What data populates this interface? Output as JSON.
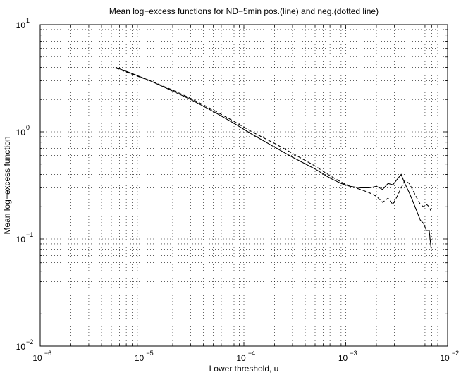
{
  "chart_data": {
    "type": "line",
    "title": "Mean log−excess functions for ND−5min pos.(line) and neg.(dotted line)",
    "xlabel": "Lower threshold, u",
    "ylabel": "Mean log−excess function",
    "x_scale": "log",
    "y_scale": "log",
    "xlim": [
      1e-06,
      0.01
    ],
    "ylim": [
      0.01,
      10
    ],
    "grid": true,
    "x_ticks": [
      {
        "value": 1e-06,
        "base": "10",
        "exp": "−6"
      },
      {
        "value": 1e-05,
        "base": "10",
        "exp": "−5"
      },
      {
        "value": 0.0001,
        "base": "10",
        "exp": "−4"
      },
      {
        "value": 0.001,
        "base": "10",
        "exp": "−3"
      },
      {
        "value": 0.01,
        "base": "10",
        "exp": "−2"
      }
    ],
    "y_ticks": [
      {
        "value": 0.01,
        "base": "10",
        "exp": "−2"
      },
      {
        "value": 0.1,
        "base": "10",
        "exp": "−1"
      },
      {
        "value": 1,
        "base": "10",
        "exp": "0"
      },
      {
        "value": 10,
        "base": "10",
        "exp": "1"
      }
    ],
    "series": [
      {
        "style": "solid",
        "x": [
          5.5e-06,
          8e-06,
          1.2e-05,
          2e-05,
          3e-05,
          5e-05,
          8e-05,
          0.00012,
          0.0002,
          0.0003,
          0.0005,
          0.0007,
          0.0009,
          0.0011,
          0.0014,
          0.0017,
          0.002,
          0.0023,
          0.0026,
          0.0029,
          0.0032,
          0.0035,
          0.0038,
          0.0042,
          0.0046,
          0.005,
          0.0054,
          0.0058,
          0.0062,
          0.0066,
          0.0069
        ],
        "y": [
          4.0,
          3.5,
          3.0,
          2.4,
          2.0,
          1.55,
          1.2,
          0.95,
          0.72,
          0.58,
          0.45,
          0.37,
          0.33,
          0.31,
          0.3,
          0.3,
          0.31,
          0.29,
          0.33,
          0.32,
          0.36,
          0.4,
          0.33,
          0.27,
          0.22,
          0.18,
          0.15,
          0.14,
          0.12,
          0.12,
          0.08
        ]
      },
      {
        "style": "dashed",
        "x": [
          5.5e-06,
          8e-06,
          1.2e-05,
          2e-05,
          3e-05,
          5e-05,
          8e-05,
          0.00012,
          0.0002,
          0.0003,
          0.0005,
          0.0007,
          0.0009,
          0.0011,
          0.0014,
          0.0017,
          0.002,
          0.0023,
          0.0026,
          0.0029,
          0.0032,
          0.0035,
          0.0038,
          0.0042,
          0.0046,
          0.005,
          0.0054,
          0.0058,
          0.0062,
          0.0066,
          0.0069
        ],
        "y": [
          3.95,
          3.45,
          3.0,
          2.45,
          2.05,
          1.6,
          1.25,
          1.0,
          0.78,
          0.63,
          0.48,
          0.39,
          0.34,
          0.31,
          0.29,
          0.27,
          0.25,
          0.22,
          0.24,
          0.21,
          0.25,
          0.3,
          0.35,
          0.33,
          0.28,
          0.24,
          0.21,
          0.2,
          0.21,
          0.2,
          0.18
        ]
      }
    ]
  }
}
